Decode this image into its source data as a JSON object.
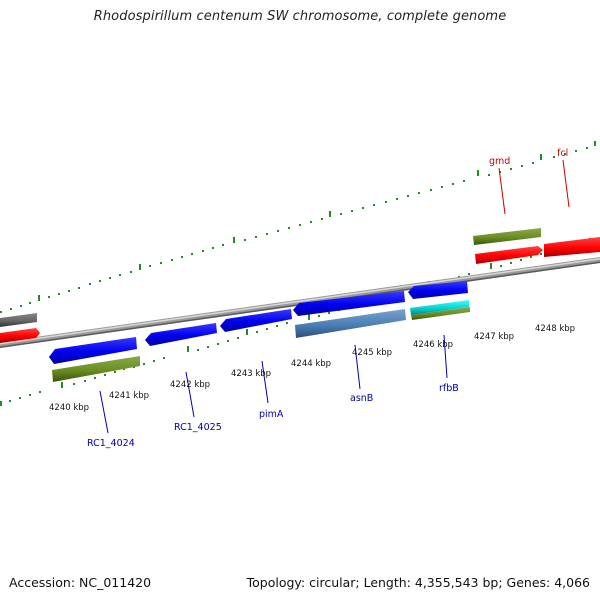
{
  "title": "Rhodospirillum centenum SW chromosome, complete genome",
  "footer": {
    "accession": "Accession: NC_011420",
    "topology": "Topology: circular; Length: 4,355,543 bp; Genes: 4,066"
  },
  "kbp_labels": [
    "4240 kbp",
    "4241 kbp",
    "4242 kbp",
    "4243 kbp",
    "4244 kbp",
    "4245 kbp",
    "4246 kbp",
    "4247 kbp",
    "4248 kbp"
  ],
  "gene_labels": [
    {
      "text": "gmd",
      "color": "#cc0000"
    },
    {
      "text": "fcl",
      "color": "#cc0000"
    },
    {
      "text": "RC1_4024",
      "color": "#0000aa"
    },
    {
      "text": "RC1_4025",
      "color": "#0000aa"
    },
    {
      "text": "pimA",
      "color": "#0000aa"
    },
    {
      "text": "asnB",
      "color": "#0000aa"
    },
    {
      "text": "rfbB",
      "color": "#0000aa"
    }
  ],
  "colors": {
    "forward_gene": "#ff0000",
    "reverse_gene": "#0000ee",
    "reverse_cds": "#4a7fb5",
    "feature_green": "#6b8e23",
    "feature_cyan": "#00cccc",
    "unknown_gene": "#666666",
    "backbone": "#888888",
    "tick": "#228b22"
  }
}
